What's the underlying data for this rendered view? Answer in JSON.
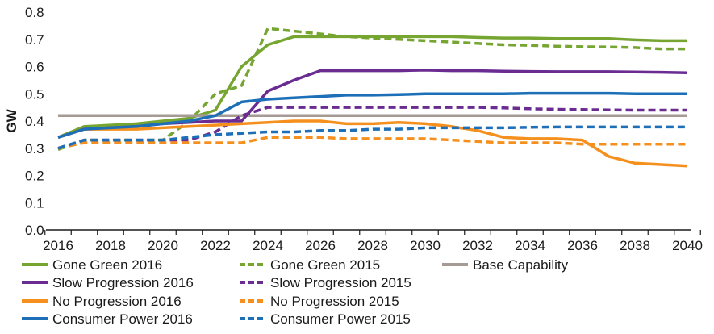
{
  "chart_data": {
    "type": "line",
    "ylabel": "GW",
    "xlabel": "",
    "ylim": [
      0.0,
      0.8
    ],
    "yticks": [
      "0.0",
      "0.1",
      "0.2",
      "0.3",
      "0.4",
      "0.5",
      "0.6",
      "0.7",
      "0.8"
    ],
    "xlim": [
      2016,
      2040
    ],
    "xticks": [
      "2016",
      "2018",
      "2020",
      "2022",
      "2024",
      "2026",
      "2028",
      "2030",
      "2032",
      "2034",
      "2036",
      "2038",
      "2040"
    ],
    "grid": false,
    "legend_position": "bottom",
    "x": [
      2016,
      2017,
      2018,
      2019,
      2020,
      2021,
      2022,
      2023,
      2024,
      2025,
      2026,
      2027,
      2028,
      2029,
      2030,
      2031,
      2032,
      2033,
      2034,
      2035,
      2036,
      2037,
      2038,
      2039,
      2040
    ],
    "series": [
      {
        "name": "Gone Green 2016",
        "color": "#76a532",
        "dash": "solid",
        "values": [
          0.34,
          0.38,
          0.385,
          0.39,
          0.4,
          0.41,
          0.44,
          0.6,
          0.68,
          0.71,
          0.71,
          0.71,
          0.71,
          0.71,
          0.71,
          0.71,
          0.707,
          0.705,
          0.705,
          0.703,
          0.703,
          0.703,
          0.698,
          0.695,
          0.695
        ]
      },
      {
        "name": "Gone Green 2015",
        "color": "#76a532",
        "dash": "dashed",
        "values": [
          0.295,
          0.33,
          0.33,
          0.33,
          0.33,
          0.4,
          0.5,
          0.53,
          0.74,
          0.73,
          0.72,
          0.71,
          0.705,
          0.7,
          0.695,
          0.69,
          0.685,
          0.68,
          0.678,
          0.675,
          0.673,
          0.672,
          0.67,
          0.665,
          0.665
        ]
      },
      {
        "name": "Base Capability",
        "color": "#a59b94",
        "dash": "solid",
        "values": [
          0.42,
          0.42,
          0.42,
          0.42,
          0.42,
          0.42,
          0.42,
          0.42,
          0.42,
          0.42,
          0.42,
          0.42,
          0.42,
          0.42,
          0.42,
          0.42,
          0.42,
          0.42,
          0.42,
          0.42,
          0.42,
          0.42,
          0.42,
          0.42,
          0.42
        ]
      },
      {
        "name": "Slow Progression 2016",
        "color": "#6a2c91",
        "dash": "solid",
        "values": [
          0.34,
          0.37,
          0.375,
          0.38,
          0.39,
          0.395,
          0.4,
          0.4,
          0.51,
          0.55,
          0.585,
          0.585,
          0.585,
          0.585,
          0.587,
          0.585,
          0.585,
          0.583,
          0.582,
          0.581,
          0.581,
          0.581,
          0.58,
          0.579,
          0.577
        ]
      },
      {
        "name": "Slow Progression 2015",
        "color": "#6a2c91",
        "dash": "dashed",
        "values": [
          0.3,
          0.33,
          0.33,
          0.33,
          0.33,
          0.33,
          0.36,
          0.42,
          0.45,
          0.45,
          0.45,
          0.45,
          0.45,
          0.45,
          0.45,
          0.45,
          0.45,
          0.448,
          0.445,
          0.443,
          0.442,
          0.441,
          0.44,
          0.44,
          0.44
        ]
      },
      {
        "name": "No Progression 2016",
        "color": "#f5901e",
        "dash": "solid",
        "values": [
          0.34,
          0.37,
          0.37,
          0.37,
          0.375,
          0.38,
          0.385,
          0.39,
          0.395,
          0.4,
          0.4,
          0.39,
          0.39,
          0.395,
          0.39,
          0.38,
          0.365,
          0.34,
          0.335,
          0.335,
          0.33,
          0.27,
          0.245,
          0.24,
          0.235
        ]
      },
      {
        "name": "No Progression 2015",
        "color": "#f5901e",
        "dash": "dashed",
        "values": [
          0.3,
          0.32,
          0.32,
          0.32,
          0.32,
          0.32,
          0.32,
          0.32,
          0.34,
          0.34,
          0.34,
          0.335,
          0.335,
          0.335,
          0.335,
          0.33,
          0.325,
          0.32,
          0.32,
          0.32,
          0.315,
          0.315,
          0.315,
          0.315,
          0.315
        ]
      },
      {
        "name": "Consumer Power 2016",
        "color": "#1d6fb8",
        "dash": "solid",
        "values": [
          0.34,
          0.37,
          0.375,
          0.38,
          0.39,
          0.4,
          0.42,
          0.47,
          0.48,
          0.485,
          0.49,
          0.495,
          0.495,
          0.497,
          0.5,
          0.5,
          0.5,
          0.5,
          0.502,
          0.502,
          0.502,
          0.502,
          0.5,
          0.5,
          0.5
        ]
      },
      {
        "name": "Consumer Power 2015",
        "color": "#1d6fb8",
        "dash": "dashed",
        "values": [
          0.3,
          0.33,
          0.33,
          0.33,
          0.33,
          0.34,
          0.35,
          0.355,
          0.36,
          0.36,
          0.365,
          0.365,
          0.37,
          0.37,
          0.375,
          0.375,
          0.375,
          0.375,
          0.377,
          0.378,
          0.378,
          0.378,
          0.378,
          0.378,
          0.378
        ]
      }
    ],
    "legend_rows": [
      [
        "Gone Green 2016",
        "Gone Green 2015",
        "Base Capability"
      ],
      [
        "Slow Progression 2016",
        "Slow Progression 2015"
      ],
      [
        "No Progression 2016",
        "No Progression 2015"
      ],
      [
        "Consumer Power 2016",
        "Consumer Power 2015"
      ]
    ]
  }
}
